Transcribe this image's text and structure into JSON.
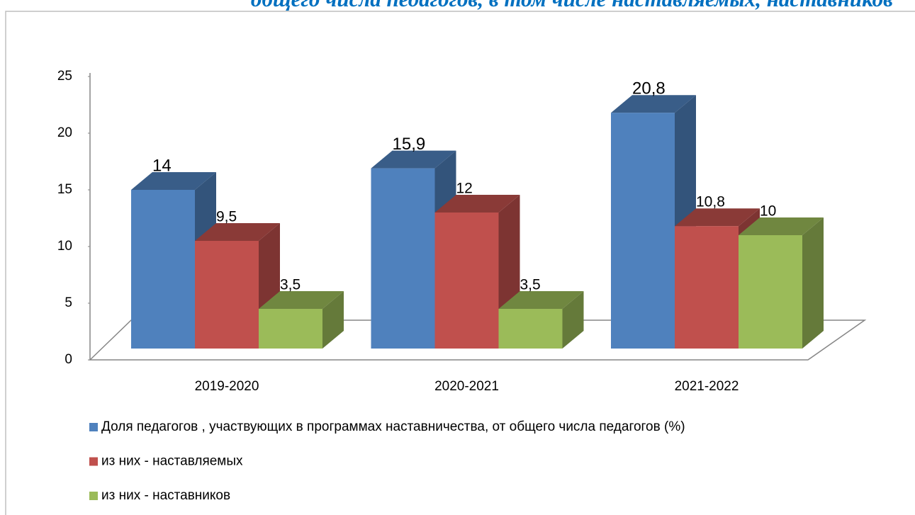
{
  "chart_data": {
    "type": "bar3d",
    "title": "общего  числа педагогов, в том  числе наставляемых, наставников",
    "categories": [
      "2019-2020",
      "2020-2021",
      "2021-2022"
    ],
    "series": [
      {
        "name": "Доля педагогов , участвующих в программах наставничества, от общего числа педагогов (%)",
        "color": "#4f81bd",
        "values": [
          14,
          15.9,
          20.8
        ],
        "value_labels": [
          "14",
          "15,9",
          "20,8"
        ]
      },
      {
        "name": "из них - наставляемых",
        "color": "#c0504d",
        "values": [
          9.5,
          12,
          10.8
        ],
        "value_labels": [
          "9,5",
          "12",
          "10,8"
        ]
      },
      {
        "name": "из них - наставников",
        "color": "#9bbb59",
        "values": [
          3.5,
          3.5,
          10
        ],
        "value_labels": [
          "3,5",
          "3,5",
          "10"
        ]
      }
    ],
    "ylim": [
      0,
      25
    ],
    "yticks": [
      0,
      5,
      10,
      15,
      20,
      25
    ],
    "legend": "bottom"
  }
}
